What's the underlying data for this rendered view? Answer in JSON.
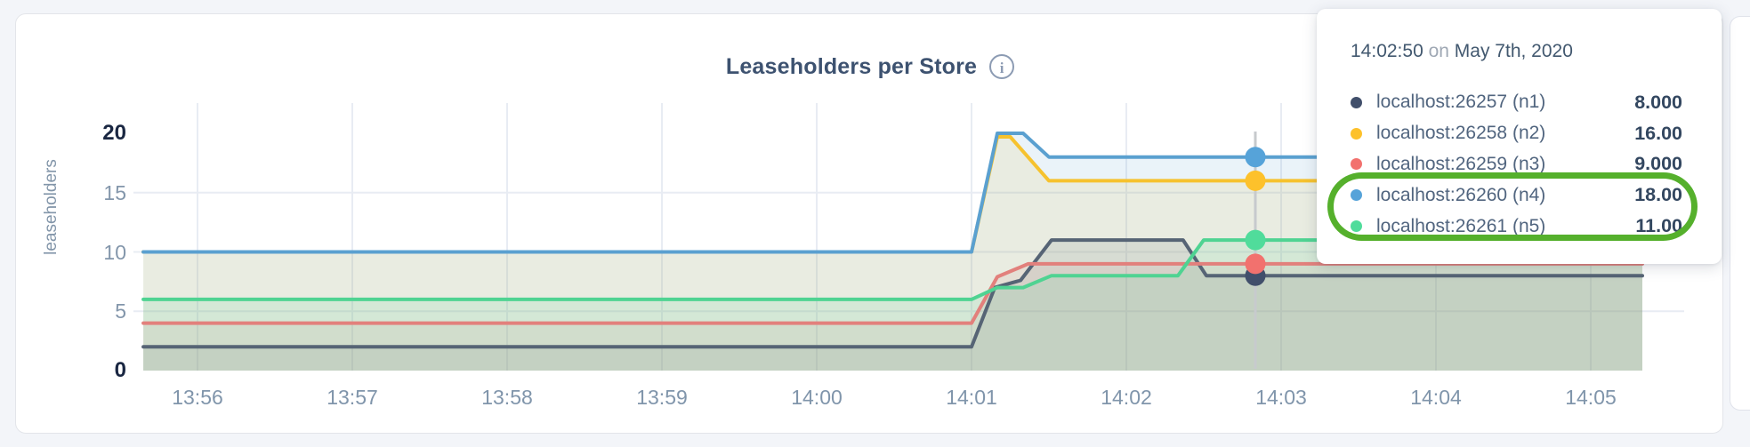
{
  "page": {
    "background": "#f3f5f9"
  },
  "card": {
    "title": "Leaseholders per Store",
    "info_icon_glyph": "i"
  },
  "axis": {
    "y_label": "leaseholders",
    "y_ticks": [
      {
        "value": 20,
        "bold": true
      },
      {
        "value": 15,
        "bold": false
      },
      {
        "value": 10,
        "bold": false
      },
      {
        "value": 5,
        "bold": false
      },
      {
        "value": 0,
        "bold": true
      }
    ],
    "x_ticks": [
      "13:56",
      "13:57",
      "13:58",
      "13:59",
      "14:00",
      "14:01",
      "14:02",
      "14:03",
      "14:04",
      "14:05"
    ]
  },
  "tooltip": {
    "time": "14:02:50",
    "on_word": "on",
    "date": "May 7th, 2020",
    "rows": [
      {
        "name": "localhost:26257 (n1)",
        "value": "8.000",
        "dot_color": "#414f6b"
      },
      {
        "name": "localhost:26258 (n2)",
        "value": "16.00",
        "dot_color": "#fdc12b"
      },
      {
        "name": "localhost:26259 (n3)",
        "value": "9.000",
        "dot_color": "#f2716e"
      },
      {
        "name": "localhost:26260 (n4)",
        "value": "18.00",
        "dot_color": "#56a3d9"
      },
      {
        "name": "localhost:26261 (n5)",
        "value": "11.00",
        "dot_color": "#50dc9b"
      }
    ]
  },
  "annotation": {
    "shape": "rounded-ellipse",
    "color": "#55b02c",
    "highlights": [
      "localhost:26260 (n4)",
      "localhost:26261 (n5)"
    ]
  },
  "colors": {
    "grid": "#e8ecf3",
    "crosshair": "#c7cacd",
    "fill_opacity": 0.13,
    "title": "#3d5270",
    "tick_label": "#8396ab",
    "tick_label_bold": "#1a2742"
  },
  "chart_data": {
    "type": "area",
    "title": "Leaseholders per Store",
    "ylabel": "leaseholders",
    "ylim": [
      0,
      20
    ],
    "grid": true,
    "legend_position": "tooltip-overlay",
    "x_ticks": [
      "13:56",
      "13:57",
      "13:58",
      "13:59",
      "14:00",
      "14:01",
      "14:02",
      "14:03",
      "14:04",
      "14:05"
    ],
    "time_base": "points are [seconds since 13:56:00, leaseholders]; data runs 13:55:39 to 14:05:20",
    "series": [
      {
        "name": "localhost:26257 (n1)",
        "color": "#566475",
        "points": [
          [
            -21,
            2
          ],
          [
            300,
            2
          ],
          [
            309,
            7
          ],
          [
            319,
            7.6
          ],
          [
            331,
            11
          ],
          [
            382,
            11
          ],
          [
            391,
            8
          ],
          [
            560,
            8
          ]
        ]
      },
      {
        "name": "localhost:26258 (n2)",
        "color": "#f6c22e",
        "points": [
          [
            -21,
            10
          ],
          [
            300,
            10
          ],
          [
            310,
            19.7
          ],
          [
            315,
            19.7
          ],
          [
            330,
            16
          ],
          [
            560,
            16
          ]
        ]
      },
      {
        "name": "localhost:26259 (n3)",
        "color": "#e2807c",
        "points": [
          [
            -21,
            4
          ],
          [
            300,
            4
          ],
          [
            310,
            7.9
          ],
          [
            322,
            9
          ],
          [
            560,
            9
          ]
        ]
      },
      {
        "name": "localhost:26260 (n4)",
        "color": "#5aa0d0",
        "points": [
          [
            -21,
            10
          ],
          [
            300,
            10
          ],
          [
            310,
            20
          ],
          [
            320,
            20
          ],
          [
            330,
            18
          ],
          [
            560,
            18
          ]
        ]
      },
      {
        "name": "localhost:26261 (n5)",
        "color": "#4fd392",
        "points": [
          [
            -21,
            6
          ],
          [
            300,
            6
          ],
          [
            310,
            7
          ],
          [
            320,
            7
          ],
          [
            331,
            8
          ],
          [
            380,
            8
          ],
          [
            390,
            11
          ],
          [
            560,
            11
          ]
        ]
      }
    ],
    "hover": {
      "t_seconds": 410,
      "label": "14:02:50 on May 7th, 2020",
      "values": [
        8,
        16,
        9,
        18,
        11
      ],
      "dot_colors": [
        "#414f6b",
        "#fdc12b",
        "#f2716e",
        "#56a3d9",
        "#50dc9b"
      ]
    }
  }
}
